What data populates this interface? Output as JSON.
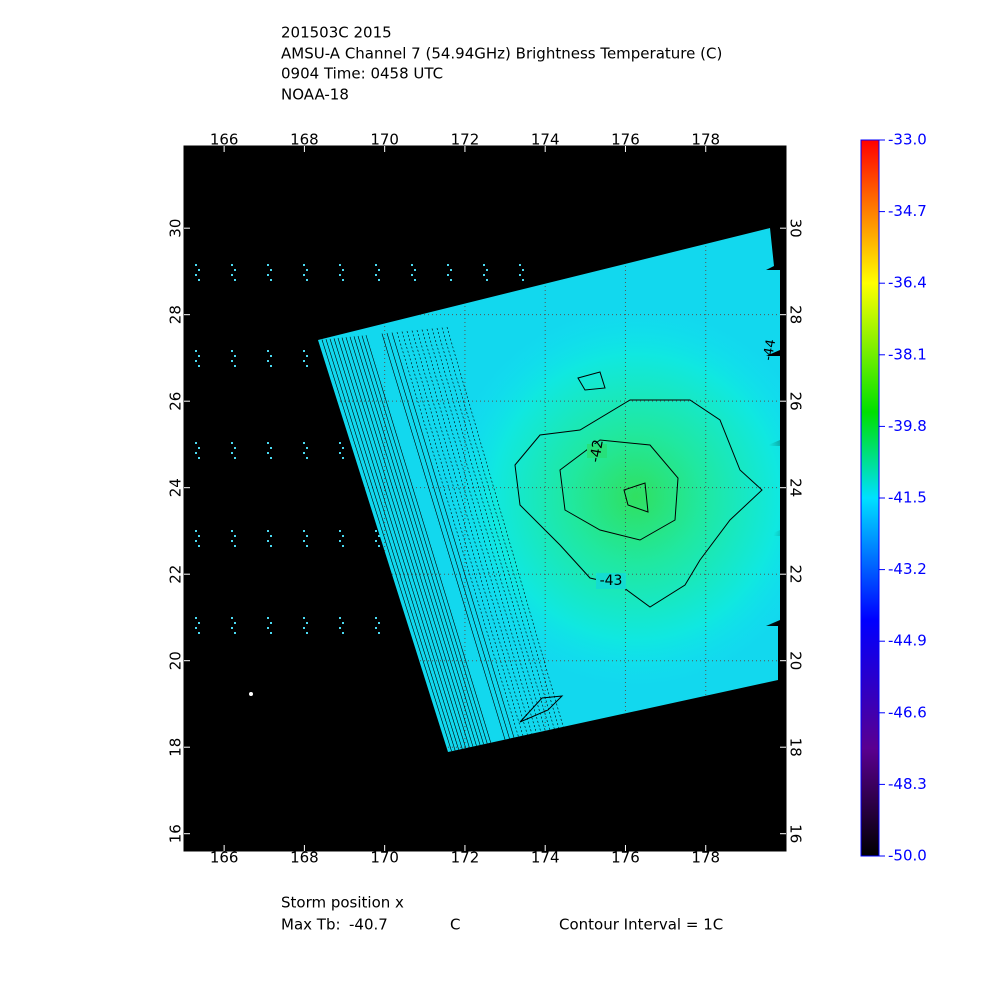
{
  "chart_data": {
    "type": "contour-map",
    "title": [
      "201503C 2015",
      "AMSU-A Channel 7 (54.94GHz) Brightness Temperature (C)",
      "0904 Time: 0458 UTC",
      "NOAA-18"
    ],
    "xlim": [
      165,
      180
    ],
    "xticks": [
      166,
      168,
      170,
      172,
      174,
      176,
      178
    ],
    "ylim": [
      15.6,
      31.9
    ],
    "yticks": [
      16,
      18,
      20,
      22,
      24,
      26,
      28,
      30
    ],
    "grid": true,
    "contour_labels": [
      "-42",
      "-43",
      "-44"
    ],
    "colorbar": {
      "lim": [
        -50,
        -33
      ],
      "ticks": [
        {
          "value": -33,
          "label": "-33.0"
        },
        {
          "value": -34.7,
          "label": "-34.7"
        },
        {
          "value": -36.4,
          "label": "-36.4"
        },
        {
          "value": -38.1,
          "label": "-38.1"
        },
        {
          "value": -39.8,
          "label": "-39.8"
        },
        {
          "value": -41.5,
          "label": "-41.5"
        },
        {
          "value": -43.2,
          "label": "-43.2"
        },
        {
          "value": -44.9,
          "label": "-44.9"
        },
        {
          "value": -46.6,
          "label": "-46.6"
        },
        {
          "value": -48.3,
          "label": "-48.3"
        },
        {
          "value": -50,
          "label": "-50.0"
        }
      ]
    },
    "footer": {
      "storm": "Storm position x",
      "max_label": "Max Tb:",
      "max_value": "-40.7",
      "unit": "C",
      "interval": "Contour Interval = 1C"
    }
  }
}
